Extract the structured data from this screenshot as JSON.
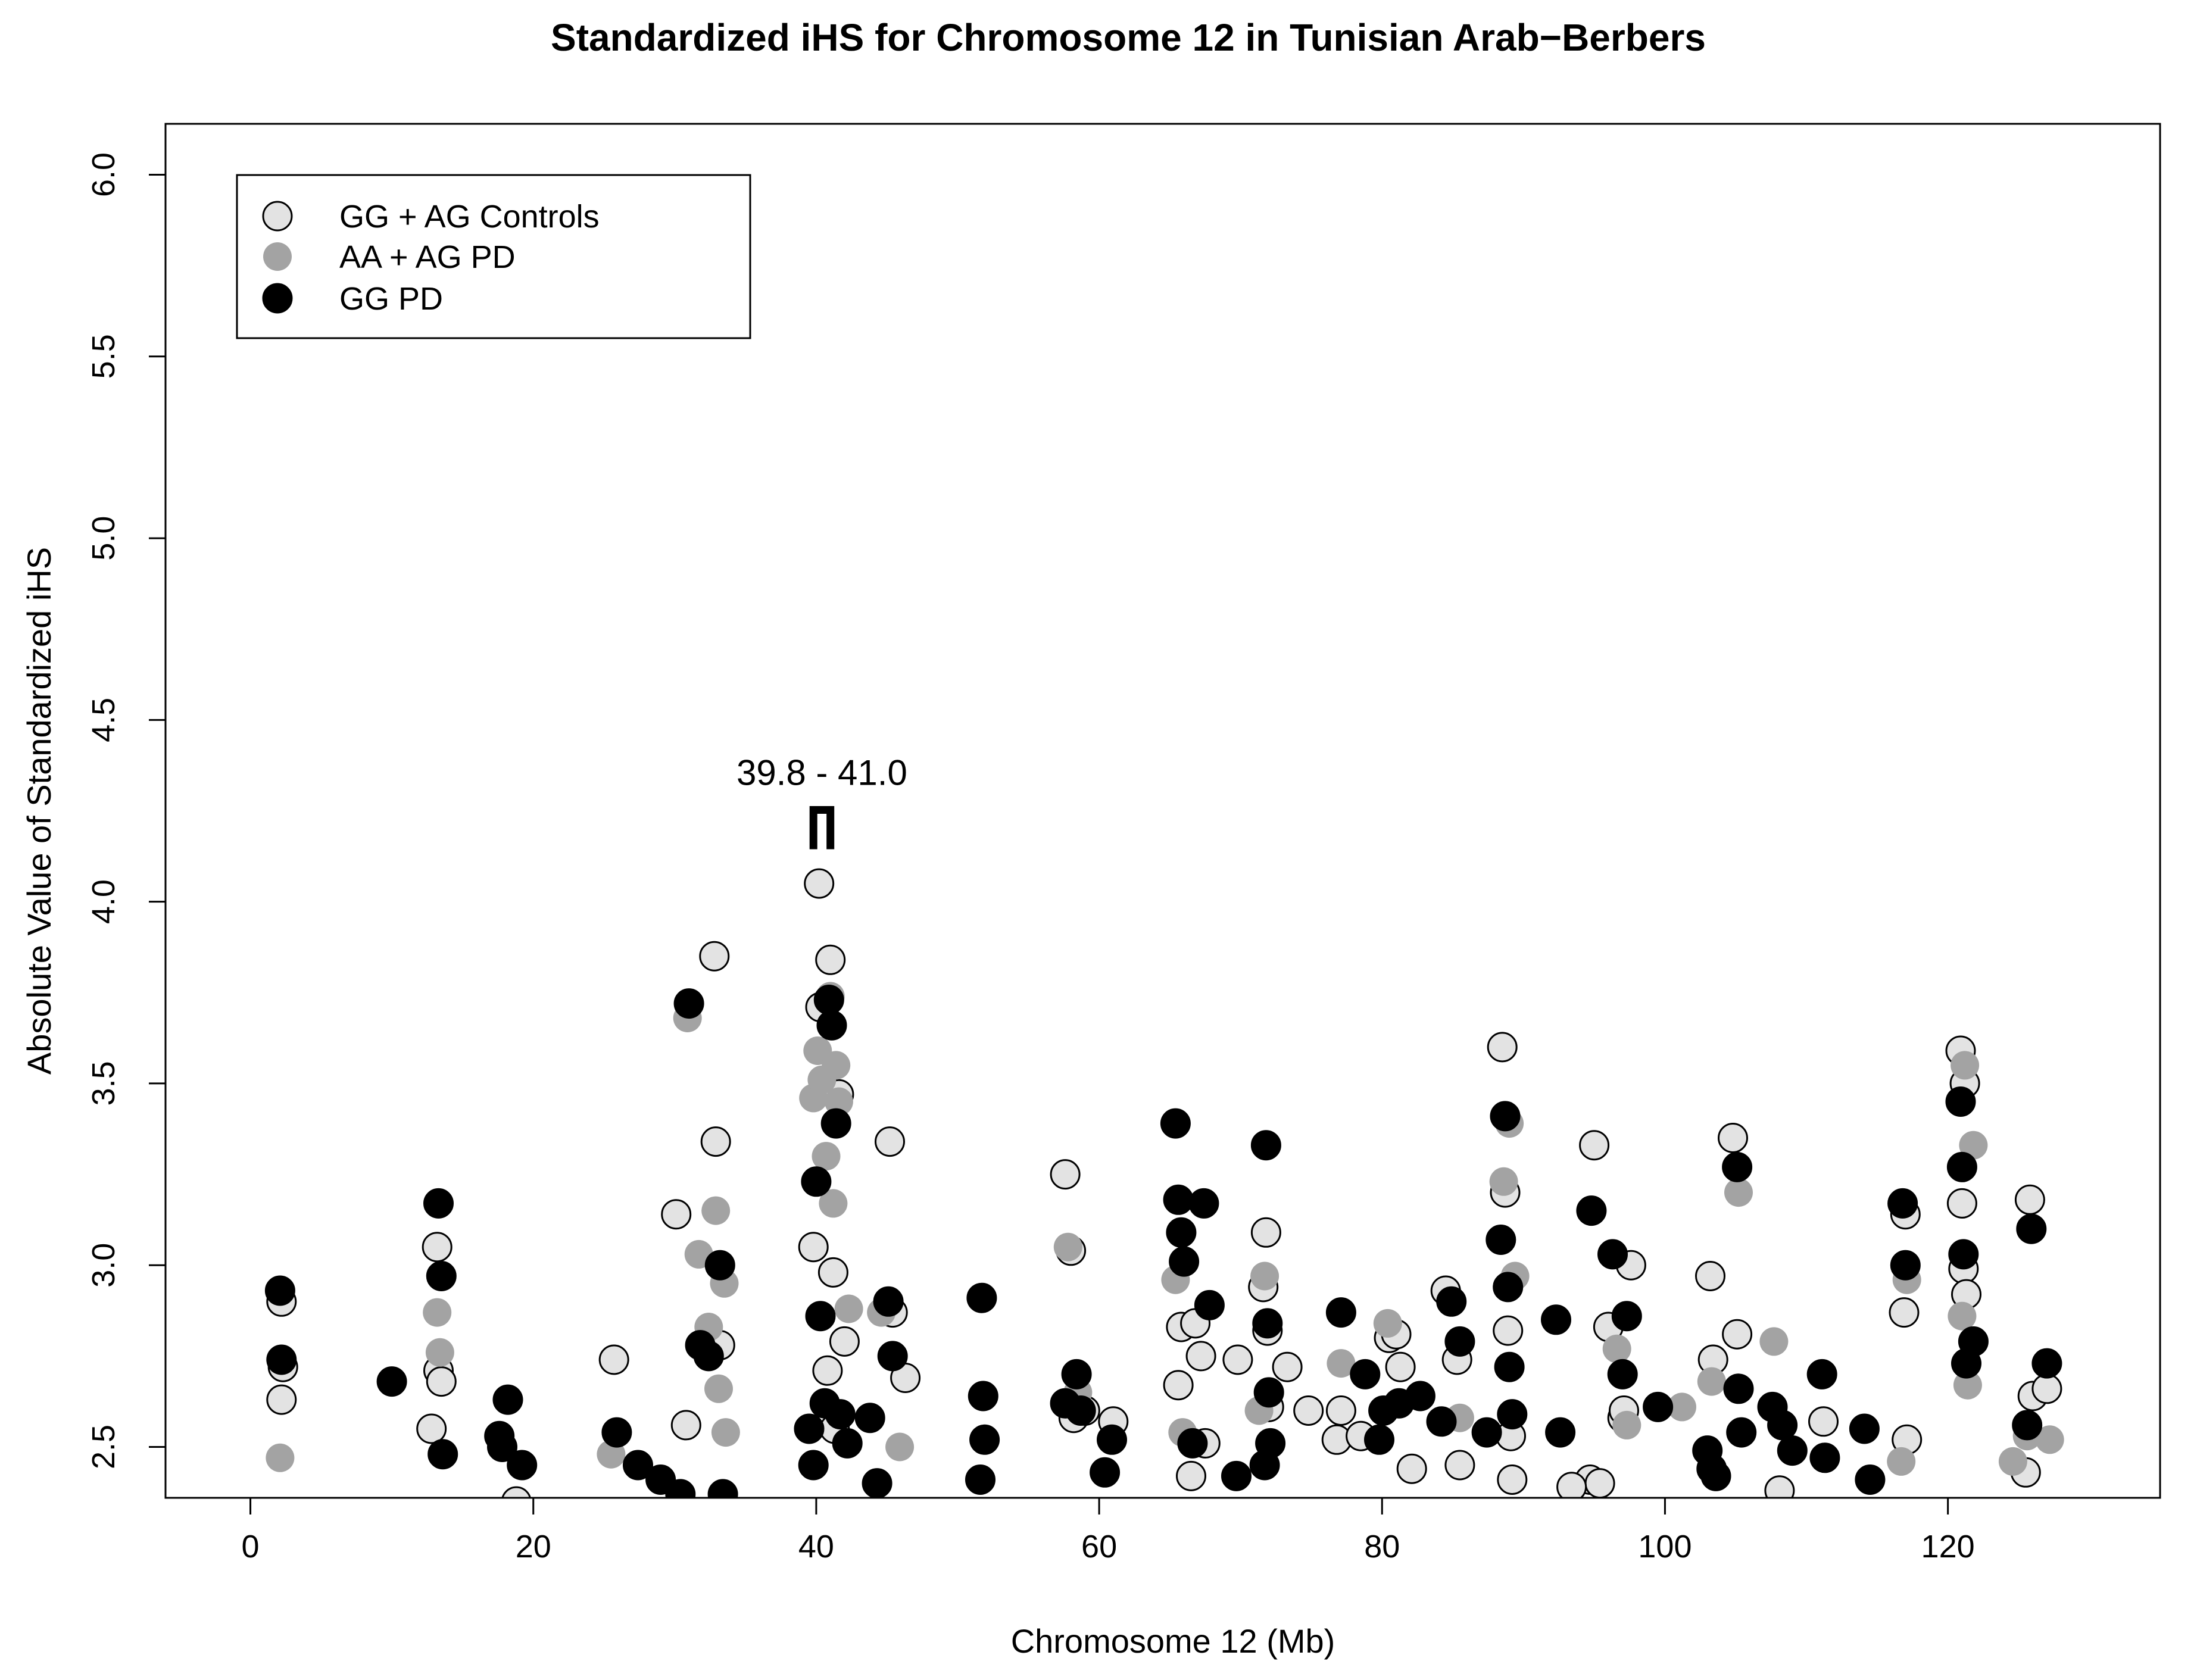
{
  "colors": {
    "controls": "#e3e3e3",
    "aa_ag_pd": "#a3a3a3",
    "gg_pd": "#000000",
    "outline": "#000000"
  },
  "chart_data": {
    "type": "scatter",
    "title": "Standardized iHS for Chromosome 12 in Tunisian Arab−Berbers",
    "xlabel": "Chromosome 12 (Mb)",
    "ylabel": "Absolute Value of Standardized iHS",
    "xlim": [
      -6,
      135
    ],
    "ylim": [
      2.36,
      6.14
    ],
    "xticks": [
      0,
      20,
      40,
      60,
      80,
      100,
      120
    ],
    "xtick_labels": [
      "0",
      "20",
      "40",
      "60",
      "80",
      "100",
      "120"
    ],
    "yticks": [
      2.5,
      3.0,
      3.5,
      4.0,
      4.5,
      5.0,
      5.5,
      6.0
    ],
    "ytick_labels": [
      "2.5",
      "3.0",
      "3.5",
      "4.0",
      "4.5",
      "5.0",
      "5.5",
      "6.0"
    ],
    "legend_position": "top-left",
    "annotation": {
      "text": "39.8 - 41.0",
      "x_start": 39.8,
      "x_end": 41.0,
      "y_bracket": 4.2
    },
    "series": [
      {
        "name": "GG + AG Controls",
        "style": "controls",
        "x": [
          2.2,
          2.2,
          2.3,
          12.8,
          13.2,
          13.3,
          13.5,
          18.8,
          25.7,
          30.1,
          30.8,
          32.8,
          32.9,
          33.2,
          39.8,
          40.2,
          40.3,
          40.8,
          41.0,
          41.2,
          41.3,
          41.6,
          42.0,
          45.2,
          45.4,
          46.3,
          57.6,
          58.2,
          58.0,
          59.0,
          61.0,
          65.6,
          65.8,
          66.5,
          66.8,
          67.2,
          67.5,
          69.8,
          71.8,
          71.9,
          71.6,
          72.0,
          73.3,
          74.8,
          76.8,
          77.1,
          78.5,
          80.5,
          81.0,
          81.3,
          82.1,
          84.5,
          85.3,
          85.5,
          88.5,
          88.7,
          88.9,
          89.1,
          89.2,
          94.7,
          95.0,
          95.4,
          96.0,
          97.0,
          97.6,
          97.1,
          103.2,
          103.4,
          104.8,
          105.1,
          108.1,
          111.2,
          116.9,
          117.0,
          117.1,
          120.9,
          121.0,
          121.1,
          121.3,
          121.2,
          125.5,
          125.8,
          126.0,
          127.0,
          93.4
        ],
        "y": [
          2.9,
          2.63,
          2.72,
          2.55,
          3.05,
          2.71,
          2.68,
          2.35,
          2.74,
          3.14,
          2.56,
          3.85,
          3.34,
          2.78,
          3.05,
          4.05,
          3.71,
          2.71,
          3.84,
          2.98,
          2.55,
          3.47,
          2.79,
          3.34,
          2.87,
          2.69,
          3.25,
          2.58,
          3.04,
          2.6,
          2.57,
          2.67,
          2.83,
          2.42,
          2.84,
          2.75,
          2.51,
          2.74,
          3.09,
          2.82,
          2.94,
          2.61,
          2.72,
          2.6,
          2.52,
          2.6,
          2.53,
          2.8,
          2.81,
          2.72,
          2.44,
          2.93,
          2.74,
          2.45,
          3.6,
          3.2,
          2.82,
          2.53,
          2.41,
          2.41,
          3.33,
          2.4,
          2.83,
          2.58,
          3.0,
          2.6,
          2.97,
          2.74,
          3.35,
          2.81,
          2.38,
          2.57,
          2.87,
          3.14,
          2.52,
          3.59,
          3.17,
          2.99,
          2.92,
          3.5,
          2.43,
          3.18,
          2.64,
          2.66,
          2.39
        ]
      },
      {
        "name": "AA + AG PD",
        "style": "aa_ag_pd",
        "x": [
          2.1,
          13.2,
          13.4,
          25.5,
          30.9,
          31.7,
          32.4,
          32.9,
          33.1,
          33.5,
          33.6,
          39.8,
          40.1,
          40.4,
          40.7,
          41.0,
          41.2,
          41.4,
          41.6,
          42.3,
          44.6,
          45.9,
          57.8,
          58.5,
          65.4,
          65.9,
          71.3,
          71.7,
          77.1,
          80.4,
          85.5,
          88.6,
          89.0,
          89.4,
          96.6,
          97.3,
          101.2,
          103.3,
          105.2,
          107.7,
          116.7,
          117.1,
          121.0,
          121.2,
          121.4,
          121.8,
          124.6,
          125.6,
          127.2
        ],
        "y": [
          2.47,
          2.87,
          2.76,
          2.48,
          3.68,
          3.03,
          2.83,
          3.15,
          2.66,
          2.95,
          2.54,
          3.46,
          3.59,
          3.51,
          3.3,
          3.74,
          3.17,
          3.55,
          3.45,
          2.88,
          2.87,
          2.5,
          3.05,
          2.65,
          2.96,
          2.54,
          2.6,
          2.97,
          2.73,
          2.84,
          2.58,
          3.23,
          3.39,
          2.97,
          2.77,
          2.56,
          2.61,
          2.68,
          3.2,
          2.79,
          2.46,
          2.96,
          2.86,
          3.55,
          2.67,
          3.33,
          2.46,
          2.53,
          2.52
        ]
      },
      {
        "name": "GG PD",
        "style": "gg_pd",
        "x": [
          2.1,
          2.2,
          10.0,
          13.3,
          13.5,
          13.6,
          17.6,
          17.8,
          18.2,
          19.2,
          25.9,
          27.4,
          29.0,
          30.4,
          31.0,
          31.8,
          32.4,
          33.2,
          33.4,
          39.5,
          39.8,
          40.0,
          40.3,
          40.6,
          40.9,
          41.1,
          41.4,
          41.7,
          42.2,
          43.8,
          44.3,
          45.1,
          45.4,
          51.7,
          51.8,
          51.9,
          51.6,
          57.6,
          58.4,
          58.7,
          60.4,
          60.9,
          65.4,
          65.6,
          65.8,
          66.0,
          66.6,
          67.4,
          67.8,
          69.7,
          71.8,
          71.9,
          72.0,
          71.7,
          72.1,
          77.1,
          78.8,
          79.8,
          80.1,
          81.2,
          82.7,
          84.2,
          84.9,
          85.5,
          87.4,
          88.4,
          88.7,
          88.9,
          89.0,
          89.2,
          92.3,
          92.6,
          94.8,
          96.3,
          97.0,
          97.3,
          99.5,
          103.0,
          103.3,
          103.6,
          105.1,
          105.2,
          105.4,
          107.6,
          108.3,
          109.0,
          111.1,
          111.3,
          114.1,
          114.5,
          116.8,
          117.0,
          120.9,
          121.0,
          121.1,
          121.3,
          121.8,
          125.6,
          125.9,
          127.0
        ],
        "y": [
          2.93,
          2.74,
          2.68,
          3.17,
          2.97,
          2.48,
          2.53,
          2.5,
          2.63,
          2.45,
          2.54,
          2.45,
          2.41,
          2.37,
          3.72,
          2.78,
          2.75,
          3.0,
          2.37,
          2.55,
          2.45,
          3.23,
          2.86,
          2.62,
          3.73,
          3.66,
          3.39,
          2.59,
          2.51,
          2.58,
          2.4,
          2.9,
          2.75,
          2.91,
          2.64,
          2.52,
          2.41,
          2.62,
          2.7,
          2.6,
          2.43,
          2.52,
          3.39,
          3.18,
          3.09,
          3.01,
          2.51,
          3.17,
          2.89,
          2.42,
          3.33,
          2.84,
          2.65,
          2.45,
          2.51,
          2.87,
          2.7,
          2.52,
          2.6,
          2.62,
          2.64,
          2.57,
          2.9,
          2.79,
          2.54,
          3.07,
          3.41,
          2.94,
          2.72,
          2.59,
          2.85,
          2.54,
          3.15,
          3.03,
          2.7,
          2.86,
          2.61,
          2.49,
          2.44,
          2.42,
          3.27,
          2.66,
          2.54,
          2.61,
          2.56,
          2.49,
          2.7,
          2.47,
          2.55,
          2.41,
          3.17,
          3.0,
          3.45,
          3.27,
          3.03,
          2.73,
          2.79,
          2.56,
          3.1,
          2.73
        ]
      }
    ]
  }
}
